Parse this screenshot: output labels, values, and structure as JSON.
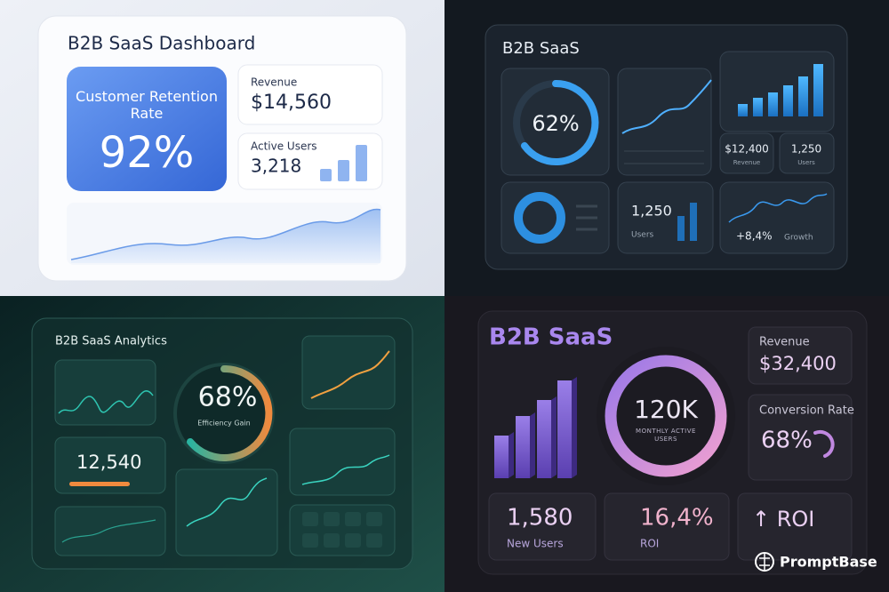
{
  "panel1": {
    "title": "B2B SaaS Dashboard",
    "retention_label": "Customer Retention Rate",
    "retention_value": "92%",
    "revenue_label": "Revenue",
    "revenue_value": "$14,560",
    "users_label": "Active Users",
    "users_value": "3,218"
  },
  "panel2": {
    "title": "B2B SaaS",
    "donut_value": "62%",
    "revenue_value": "$12,400",
    "revenue_label": "Revenue",
    "users_value": "1,250",
    "users_label": "Users",
    "users2_value": "1,250",
    "users2_label": "Users",
    "growth_value": "+8,4%",
    "growth_label": "Growth"
  },
  "panel3": {
    "title": "B2B SaaS Analytics",
    "donut_value": "68%",
    "donut_label": "Efficiency Gain",
    "metric_value": "12,540"
  },
  "panel4": {
    "title": "B2B SaaS",
    "revenue_label": "Revenue",
    "revenue_value": "$32,400",
    "conversion_label": "Conversion Rate",
    "conversion_value": "68%",
    "donut_value": "120K",
    "donut_label": "MONTHLY ACTIVE USERS",
    "new_users_value": "1,580",
    "new_users_label": "New Users",
    "roi_value": "16,4%",
    "roi_label": "ROI",
    "roi_arrow": "↑ ROI"
  },
  "watermark": "PromptBase"
}
